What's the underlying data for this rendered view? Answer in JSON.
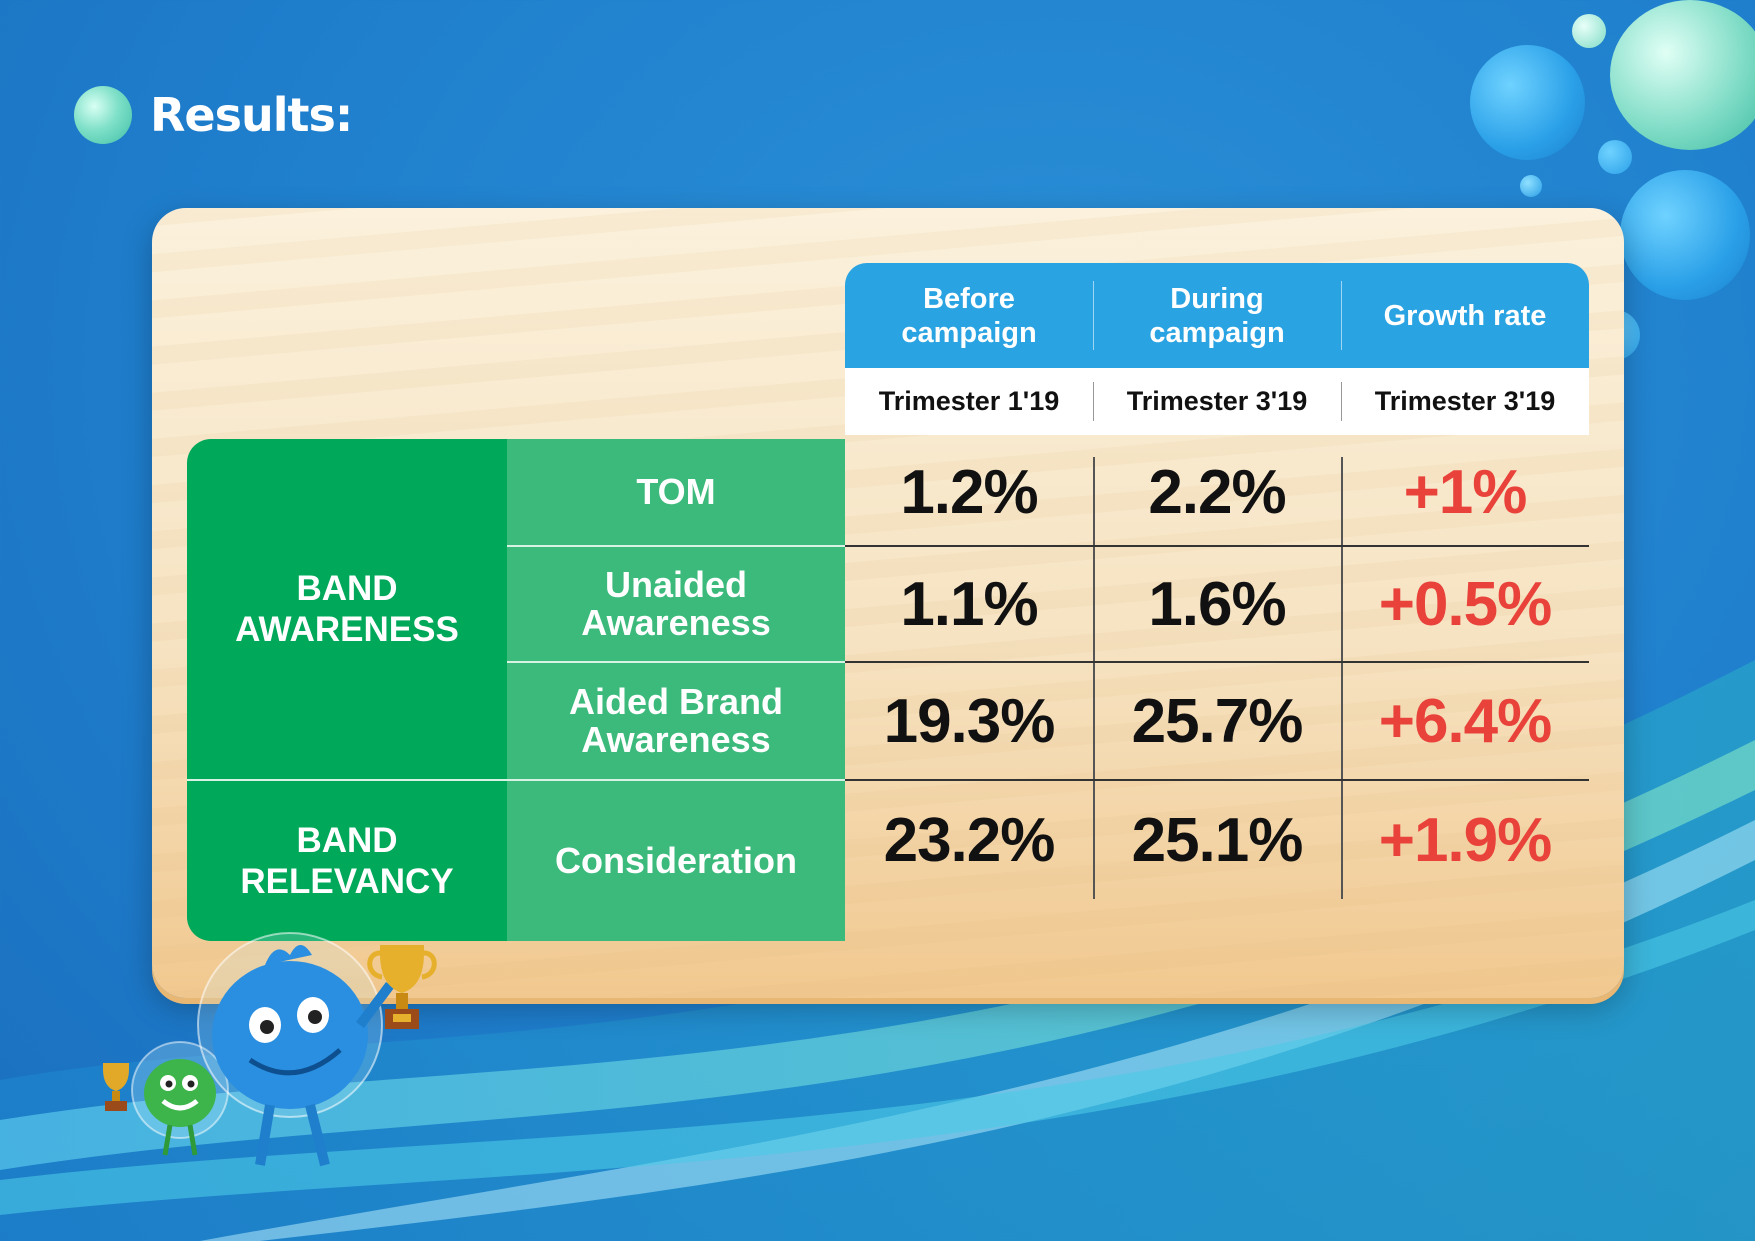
{
  "title": "Results:",
  "table": {
    "headers": [
      {
        "label": "Before\ncampaign",
        "period": "Trimester 1'19"
      },
      {
        "label": "During\ncampaign",
        "period": "Trimester 3'19"
      },
      {
        "label": "Growth rate",
        "period": "Trimester 3'19"
      }
    ],
    "categories": [
      {
        "label": "BAND\nAWARENESS"
      },
      {
        "label": "BAND\nRELEVANCY"
      }
    ],
    "rows": [
      {
        "metric": "TOM",
        "before": "1.2%",
        "during": "2.2%",
        "growth": "+1%"
      },
      {
        "metric": "Unaided\nAwareness",
        "before": "1.1%",
        "during": "1.6%",
        "growth": "+0.5%"
      },
      {
        "metric": "Aided Brand\nAwareness",
        "before": "19.3%",
        "during": "25.7%",
        "growth": "+6.4%"
      },
      {
        "metric": "Consideration",
        "before": "23.2%",
        "during": "25.1%",
        "growth": "+1.9%"
      }
    ]
  },
  "colors": {
    "background": "#1f7fcd",
    "header_blue": "#2aa3e2",
    "category_green": "#00a85a",
    "metric_green": "#3bba7b",
    "growth_red": "#e8423a"
  }
}
